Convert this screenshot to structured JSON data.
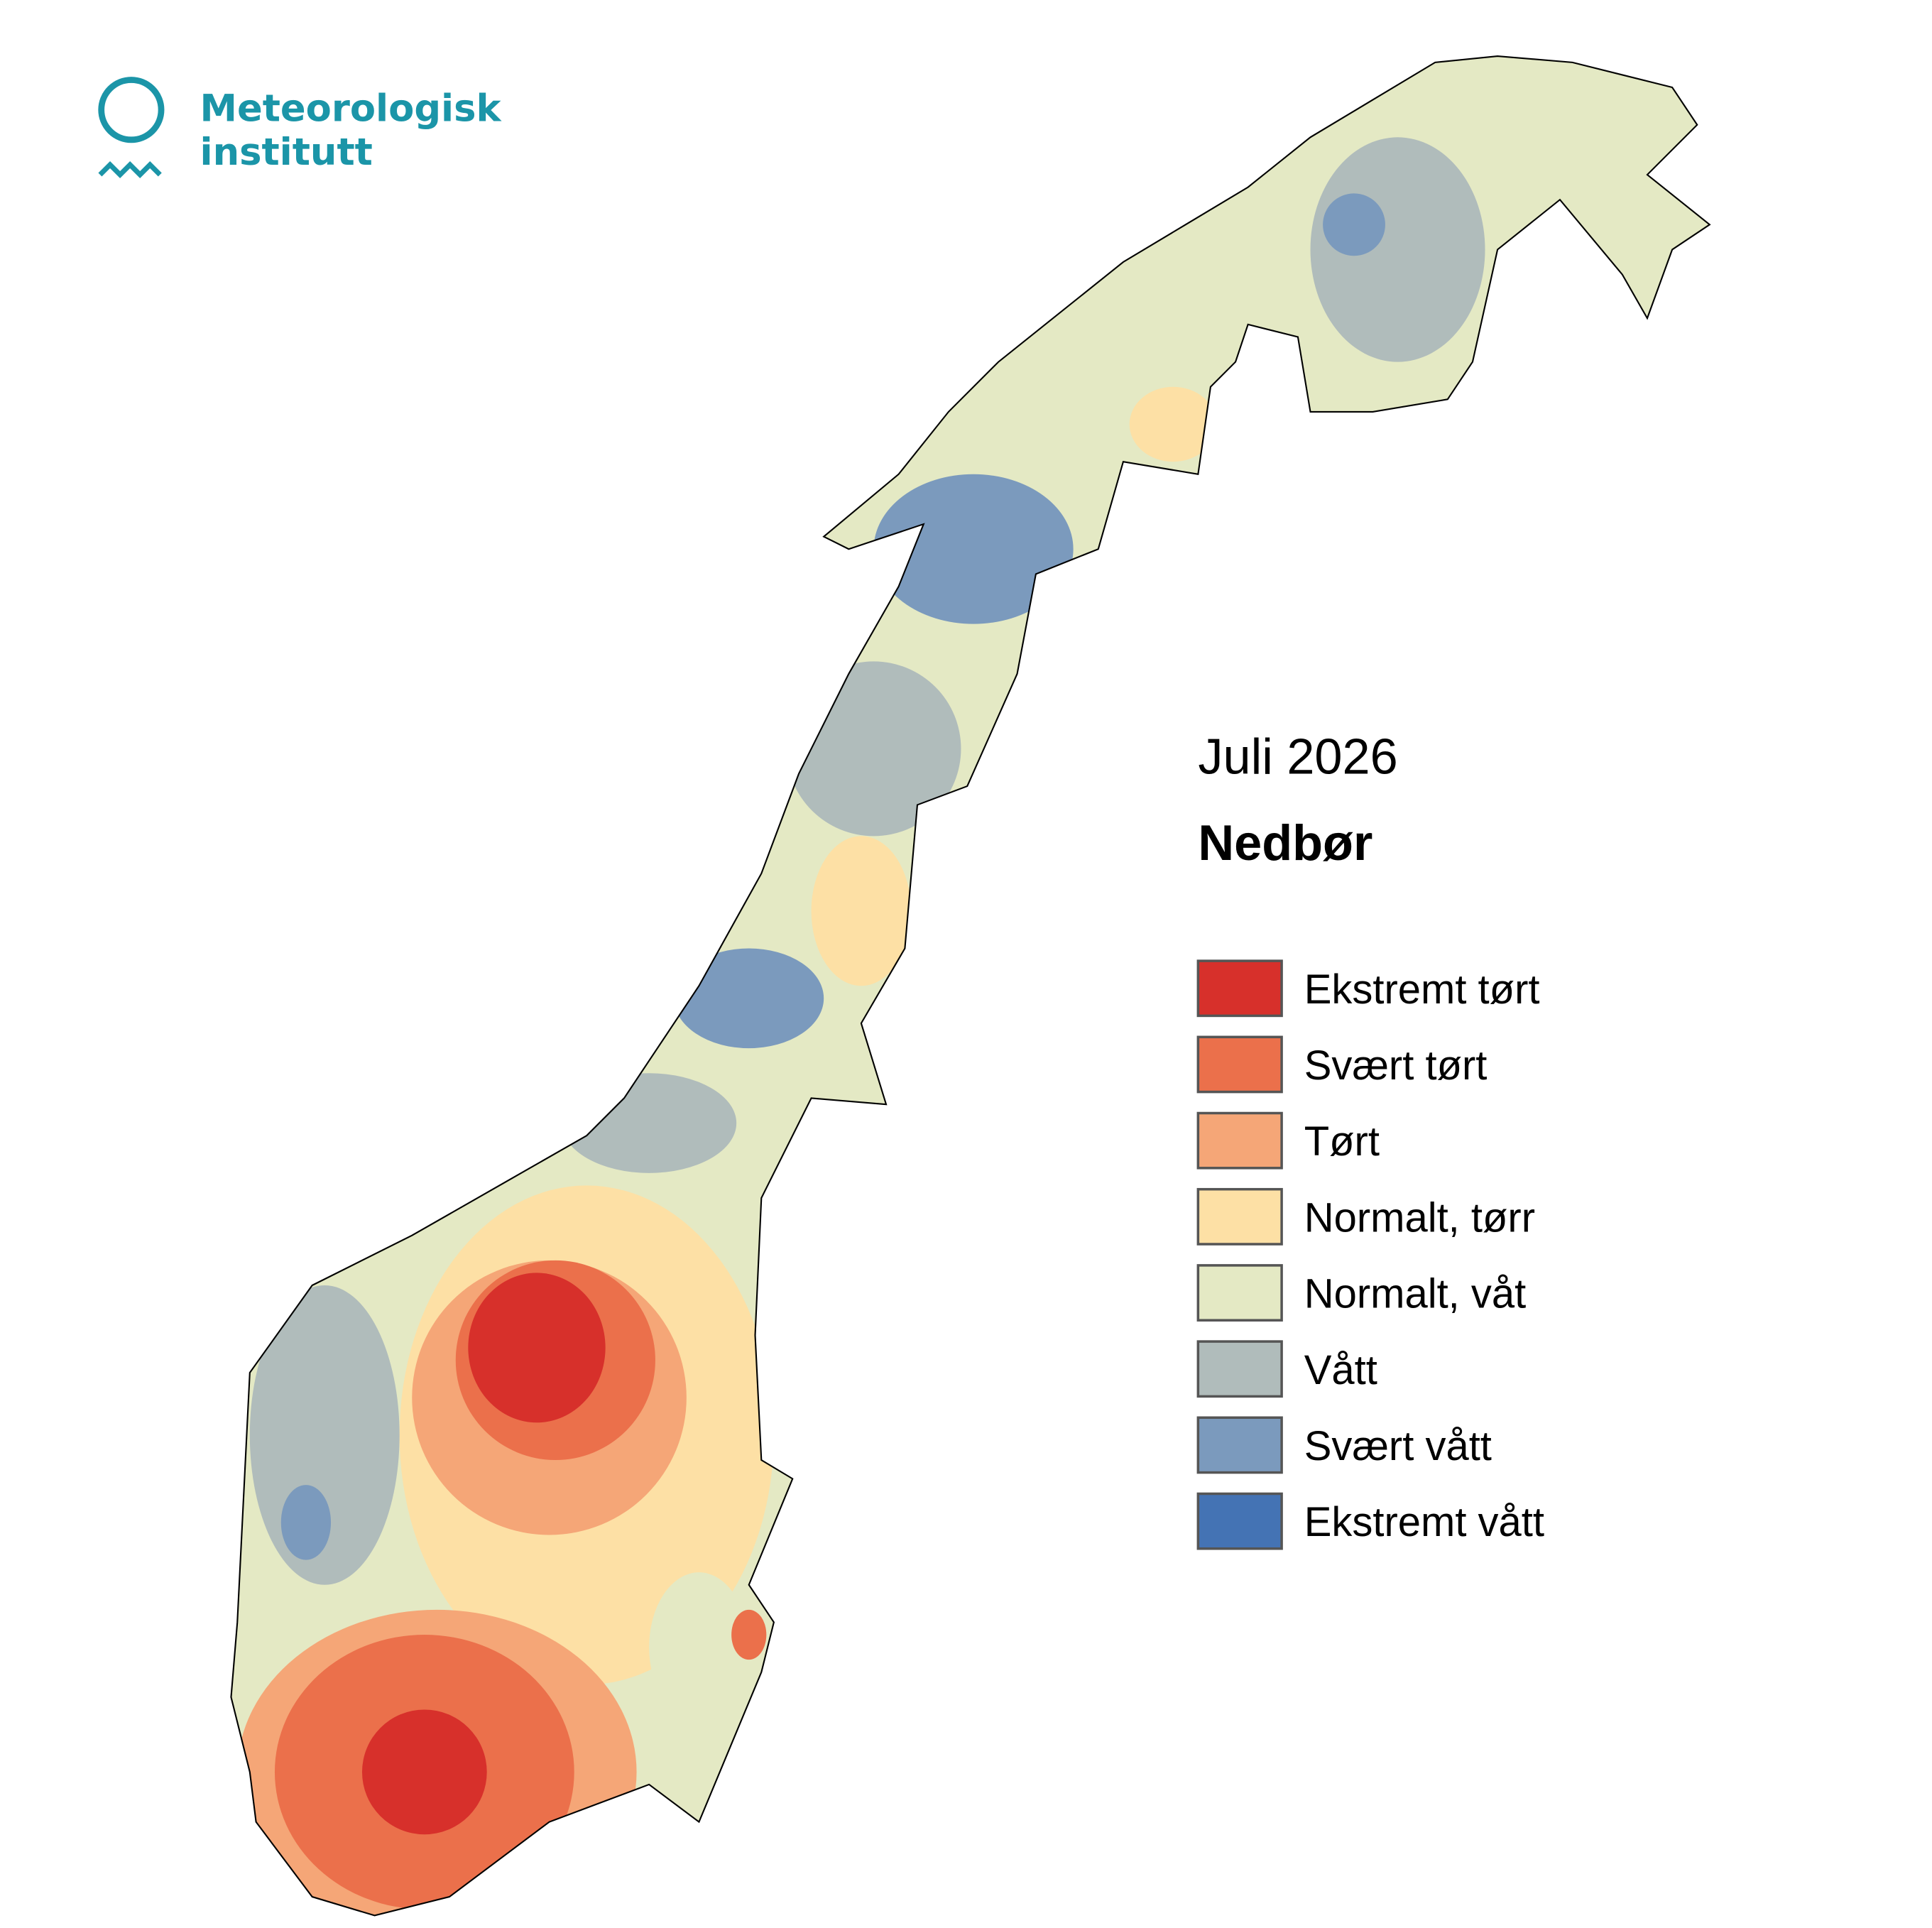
{
  "logo": {
    "line1": "Meteorologisk",
    "line2": "institutt"
  },
  "title": "Juli 2026",
  "subtitle": "Nedbør",
  "legend": [
    {
      "name": "Ekstremt tørt",
      "color": "#d7302b"
    },
    {
      "name": "Svært tørt",
      "color": "#eb704b"
    },
    {
      "name": "Tørt",
      "color": "#f5a677"
    },
    {
      "name": "Normalt, tørr",
      "color": "#fde0a5"
    },
    {
      "name": "Normalt, våt",
      "color": "#e4e9c4"
    },
    {
      "name": "Vått",
      "color": "#b0bcbb"
    },
    {
      "name": "Svært vått",
      "color": "#7b9abd"
    },
    {
      "name": "Ekstremt vått",
      "color": "#4473b4"
    }
  ]
}
